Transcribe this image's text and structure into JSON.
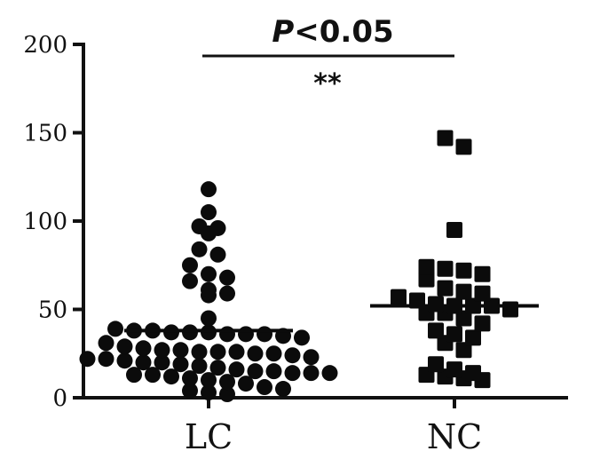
{
  "chart_data": {
    "type": "scatter",
    "subtype": "dot-plot with median lines",
    "categories": [
      "LC",
      "NC"
    ],
    "ylim": [
      0,
      200
    ],
    "yticks": [
      "0",
      "50",
      "100",
      "150",
      "200"
    ],
    "significance": {
      "p_label": "P",
      "p_rest": "<0.05",
      "stars": "**"
    },
    "series": [
      {
        "category": "LC",
        "marker": "circle",
        "median": 38,
        "values": [
          118,
          105,
          97,
          96,
          93,
          84,
          81,
          75,
          70,
          68,
          66,
          61,
          59,
          58,
          45,
          39,
          38,
          38,
          37,
          37,
          37,
          36,
          36,
          36,
          35,
          34,
          31,
          29,
          28,
          27,
          27,
          26,
          26,
          26,
          25,
          25,
          24,
          23,
          22,
          22,
          21,
          20,
          20,
          19,
          18,
          17,
          16,
          15,
          15,
          14,
          14,
          14,
          13,
          13,
          12,
          11,
          10,
          9,
          8,
          6,
          5,
          4,
          3,
          2
        ]
      },
      {
        "category": "NC",
        "marker": "square",
        "median": 52,
        "values": [
          147,
          142,
          95,
          74,
          73,
          72,
          70,
          67,
          62,
          60,
          59,
          57,
          55,
          53,
          52,
          52,
          52,
          50,
          48,
          48,
          45,
          42,
          38,
          36,
          34,
          31,
          27,
          19,
          16,
          14,
          13,
          12,
          11,
          10
        ]
      }
    ]
  }
}
